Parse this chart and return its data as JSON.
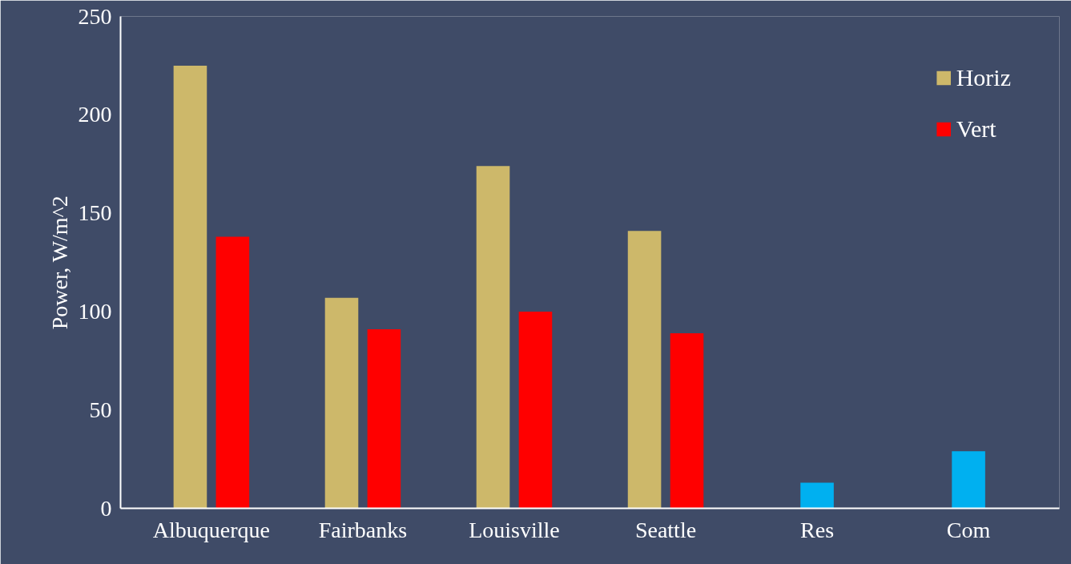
{
  "chart_data": {
    "type": "bar",
    "ylabel": "Power, W/m^2",
    "categories": [
      "Albuquerque",
      "Fairbanks",
      "Louisville",
      "Seattle",
      "Res",
      "Com"
    ],
    "series": [
      {
        "name": "Horiz",
        "color": "#cdb86a",
        "values": [
          225,
          107,
          174,
          141,
          null,
          null
        ]
      },
      {
        "name": "Vert",
        "color": "#ff0000",
        "values": [
          138,
          91,
          100,
          89,
          null,
          null
        ]
      },
      {
        "color": "#00b0f0",
        "values": [
          null,
          null,
          null,
          null,
          13,
          29
        ]
      }
    ],
    "ylim": [
      0,
      250
    ],
    "yticks": [
      0,
      50,
      100,
      150,
      200,
      250
    ],
    "grid": false,
    "legend": "top right"
  }
}
